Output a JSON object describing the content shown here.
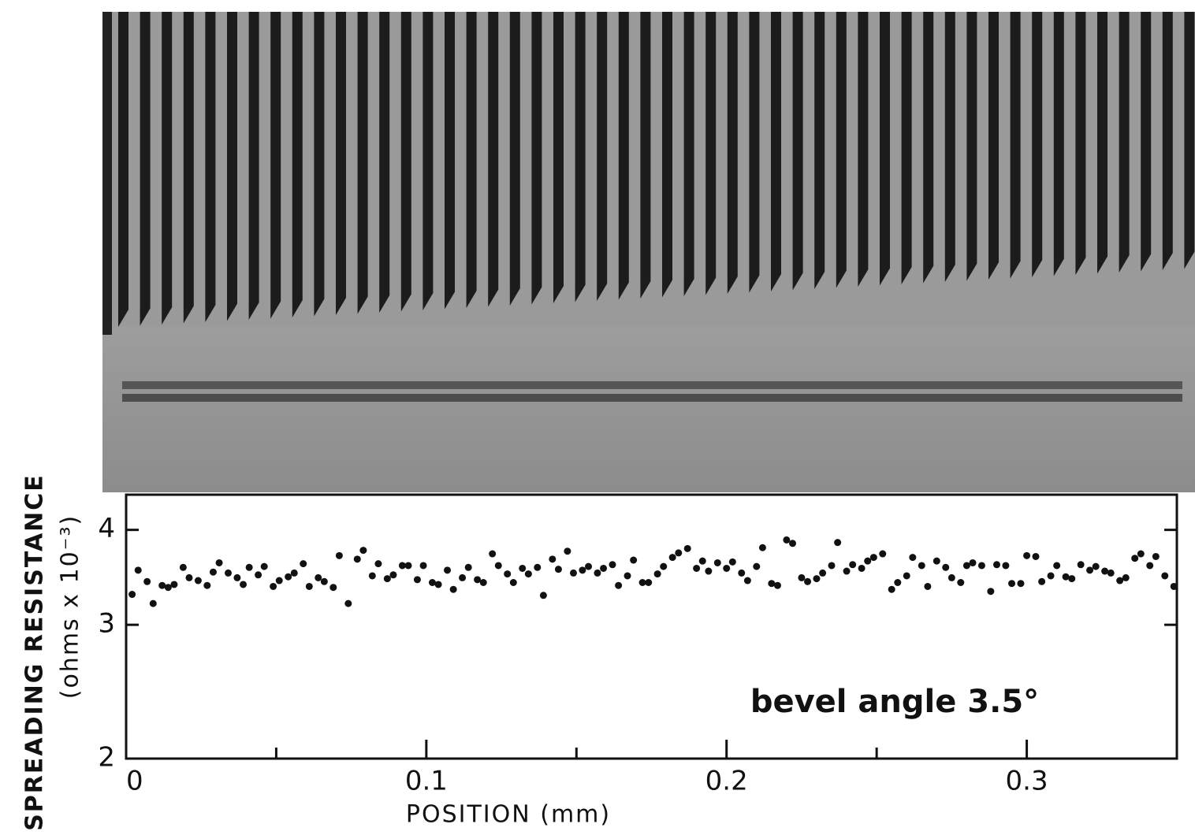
{
  "chart_data": {
    "type": "scatter",
    "x_label": "POSITION (mm)",
    "y_label": "SPREADING RESISTANCE",
    "y_label_units": "(ohms x 10⁻³)",
    "annotation": "bevel angle 3.5°",
    "color": "#111111",
    "y_log_scale": true,
    "xlim": [
      0,
      0.35
    ],
    "ylim": [
      2,
      4.45
    ],
    "xticks": [
      0,
      0.1,
      0.2,
      0.3
    ],
    "xminorticks": [
      0.05,
      0.15,
      0.25
    ],
    "yticks": [
      2,
      3,
      4
    ],
    "series": [
      {
        "color": "#111111",
        "x": [
          0.002,
          0.004,
          0.007,
          0.009,
          0.012,
          0.014,
          0.016,
          0.019,
          0.021,
          0.024,
          0.027,
          0.029,
          0.031,
          0.034,
          0.037,
          0.039,
          0.041,
          0.044,
          0.046,
          0.049,
          0.051,
          0.054,
          0.056,
          0.059,
          0.061,
          0.064,
          0.066,
          0.069,
          0.071,
          0.074,
          0.077,
          0.079,
          0.082,
          0.084,
          0.087,
          0.089,
          0.092,
          0.094,
          0.097,
          0.099,
          0.102,
          0.104,
          0.107,
          0.109,
          0.112,
          0.114,
          0.117,
          0.119,
          0.122,
          0.124,
          0.127,
          0.129,
          0.132,
          0.134,
          0.137,
          0.139,
          0.142,
          0.144,
          0.147,
          0.149,
          0.152,
          0.154,
          0.157,
          0.159,
          0.162,
          0.164,
          0.167,
          0.169,
          0.172,
          0.174,
          0.177,
          0.179,
          0.182,
          0.184,
          0.187,
          0.19,
          0.192,
          0.194,
          0.197,
          0.2,
          0.202,
          0.205,
          0.207,
          0.21,
          0.212,
          0.215,
          0.217,
          0.22,
          0.222,
          0.225,
          0.227,
          0.23,
          0.232,
          0.235,
          0.237,
          0.24,
          0.242,
          0.245,
          0.247,
          0.249,
          0.252,
          0.255,
          0.257,
          0.26,
          0.262,
          0.265,
          0.267,
          0.27,
          0.273,
          0.275,
          0.278,
          0.28,
          0.282,
          0.285,
          0.288,
          0.29,
          0.293,
          0.295,
          0.298,
          0.3,
          0.303,
          0.305,
          0.308,
          0.31,
          0.313,
          0.315,
          0.318,
          0.321,
          0.323,
          0.326,
          0.328,
          0.331,
          0.333,
          0.336,
          0.338,
          0.341,
          0.343,
          0.346,
          0.349
        ],
        "values": [
          3.29,
          3.54,
          3.42,
          3.2,
          3.38,
          3.36,
          3.39,
          3.57,
          3.46,
          3.43,
          3.38,
          3.52,
          3.62,
          3.51,
          3.46,
          3.39,
          3.57,
          3.49,
          3.58,
          3.37,
          3.43,
          3.47,
          3.51,
          3.61,
          3.37,
          3.46,
          3.42,
          3.36,
          3.7,
          3.2,
          3.66,
          3.76,
          3.48,
          3.61,
          3.45,
          3.49,
          3.59,
          3.59,
          3.44,
          3.59,
          3.41,
          3.39,
          3.54,
          3.34,
          3.46,
          3.57,
          3.44,
          3.41,
          3.72,
          3.59,
          3.5,
          3.41,
          3.56,
          3.5,
          3.57,
          3.28,
          3.66,
          3.55,
          3.75,
          3.51,
          3.54,
          3.58,
          3.51,
          3.56,
          3.6,
          3.38,
          3.48,
          3.65,
          3.41,
          3.41,
          3.5,
          3.58,
          3.68,
          3.73,
          3.78,
          3.56,
          3.64,
          3.53,
          3.62,
          3.56,
          3.63,
          3.51,
          3.43,
          3.58,
          3.79,
          3.4,
          3.38,
          3.88,
          3.84,
          3.46,
          3.42,
          3.45,
          3.51,
          3.59,
          3.85,
          3.53,
          3.6,
          3.56,
          3.64,
          3.68,
          3.72,
          3.34,
          3.41,
          3.48,
          3.68,
          3.59,
          3.37,
          3.64,
          3.57,
          3.46,
          3.41,
          3.59,
          3.62,
          3.59,
          3.32,
          3.6,
          3.59,
          3.4,
          3.4,
          3.7,
          3.69,
          3.42,
          3.48,
          3.59,
          3.47,
          3.45,
          3.6,
          3.54,
          3.58,
          3.53,
          3.51,
          3.43,
          3.46,
          3.67,
          3.72,
          3.59,
          3.69,
          3.48,
          3.37
        ]
      }
    ]
  }
}
